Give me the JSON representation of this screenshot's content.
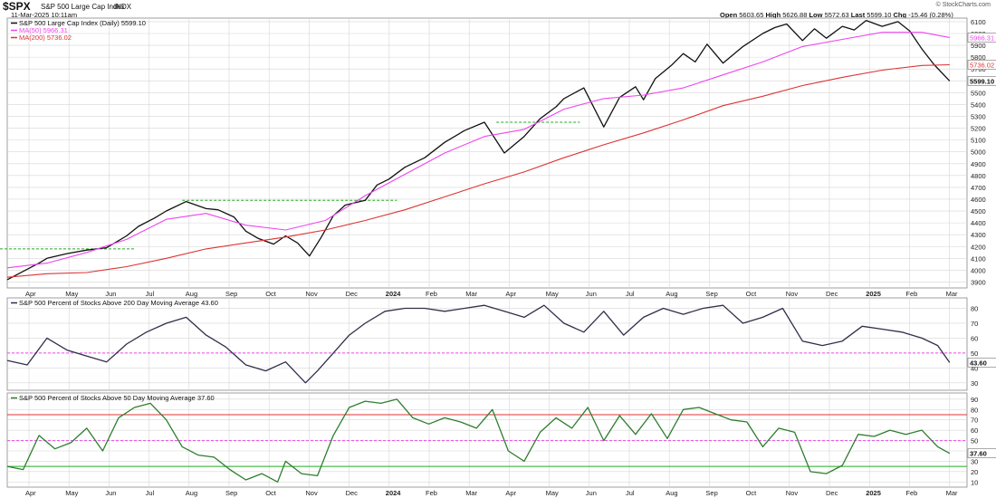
{
  "header": {
    "symbol": "$SPX",
    "name": "S&P 500 Large Cap Index",
    "exchange": "INDX",
    "timestamp": "11-Mar-2025 10:11am",
    "open_label": "Open",
    "open": "5603.65",
    "high_label": "High",
    "high": "5626.88",
    "low_label": "Low",
    "low": "5572.63",
    "last_label": "Last",
    "last": "5599.10",
    "chg_label": "Chg",
    "chg": "-15.46 (0.28%)",
    "watermark": "© StockCharts.com"
  },
  "colors": {
    "price": "#111111",
    "ma50": "#ee44ee",
    "ma200": "#dd3333",
    "breadth200": "#2f2f4a",
    "breadth50": "#2f7d2f",
    "grid": "#d6d6d6",
    "ref_green": "#22aa22",
    "ref_magenta": "#ee44ee",
    "ref_red": "#dd3333"
  },
  "chart_data": [
    {
      "type": "line",
      "legend": [
        "S&P 500 Large Cap Index (Daily) 5599.10",
        "MA(50) 5966.31",
        "MA(200) 5736.02"
      ],
      "x_axis_labels": [
        "Apr",
        "May",
        "Jun",
        "Jul",
        "Aug",
        "Sep",
        "Oct",
        "Nov",
        "Dec",
        "2024",
        "Feb",
        "Mar",
        "Apr",
        "May",
        "Jun",
        "Jul",
        "Aug",
        "Sep",
        "Oct",
        "Nov",
        "Dec",
        "2025",
        "Feb",
        "Mar"
      ],
      "yticks": [
        3900,
        4000,
        4100,
        4200,
        4300,
        4400,
        4500,
        4600,
        4700,
        4800,
        4900,
        5000,
        5100,
        5200,
        5300,
        5400,
        5500,
        5600,
        5700,
        5800,
        5900,
        6000,
        6100
      ],
      "ylim": [
        3850,
        6130
      ],
      "last_price_label": "5599.10",
      "ma50_label": "5966.31",
      "ma200_label": "5736.02",
      "x_range": [
        0,
        24
      ],
      "series": [
        {
          "name": "S&P 500 Large Cap Index (Daily) 5599.10",
          "x": [
            0,
            0.4,
            0.8,
            1,
            1.5,
            2,
            2.5,
            3,
            3.3,
            3.7,
            4,
            4.5,
            5,
            5.3,
            5.7,
            6,
            6.3,
            6.7,
            7,
            7.3,
            7.6,
            7.9,
            8.2,
            8.5,
            9,
            9.3,
            9.6,
            10,
            10.5,
            11,
            11.5,
            12,
            12.5,
            13,
            13.4,
            13.8,
            14,
            14.5,
            15,
            15.4,
            15.8,
            16,
            16.3,
            16.7,
            17,
            17.3,
            17.6,
            18,
            18.5,
            19,
            19.3,
            19.6,
            20,
            20.3,
            20.6,
            21,
            21.3,
            21.6,
            22,
            22.4,
            22.7,
            23,
            23.3,
            23.7
          ],
          "y": [
            3920,
            3990,
            4060,
            4100,
            4140,
            4170,
            4190,
            4290,
            4370,
            4440,
            4500,
            4580,
            4520,
            4510,
            4450,
            4330,
            4270,
            4220,
            4290,
            4230,
            4120,
            4280,
            4460,
            4550,
            4590,
            4720,
            4770,
            4870,
            4950,
            5080,
            5180,
            5250,
            4990,
            5130,
            5280,
            5380,
            5450,
            5540,
            5210,
            5460,
            5550,
            5440,
            5620,
            5730,
            5830,
            5760,
            5910,
            5750,
            5890,
            6000,
            6050,
            6080,
            5940,
            6040,
            5960,
            6060,
            6030,
            6110,
            6060,
            6100,
            6020,
            5870,
            5740,
            5599
          ]
        },
        {
          "name": "MA(50) 5966.31",
          "x": [
            0,
            1,
            2,
            3,
            4,
            5,
            6,
            7,
            8,
            9,
            10,
            11,
            12,
            13,
            14,
            15,
            16,
            17,
            18,
            19,
            20,
            21,
            22,
            23,
            23.7
          ],
          "y": [
            4020,
            4060,
            4150,
            4260,
            4430,
            4480,
            4380,
            4340,
            4420,
            4630,
            4810,
            4990,
            5130,
            5190,
            5360,
            5450,
            5480,
            5540,
            5650,
            5760,
            5890,
            5950,
            6010,
            6010,
            5966
          ]
        },
        {
          "name": "MA(200) 5736.02",
          "x": [
            0,
            1,
            2,
            3,
            4,
            5,
            6,
            7,
            8,
            9,
            10,
            11,
            12,
            13,
            14,
            15,
            16,
            17,
            18,
            19,
            20,
            21,
            22,
            23,
            23.7
          ],
          "y": [
            3940,
            3970,
            3980,
            4030,
            4100,
            4180,
            4230,
            4280,
            4340,
            4420,
            4510,
            4620,
            4730,
            4830,
            4950,
            5060,
            5160,
            5270,
            5390,
            5470,
            5560,
            5630,
            5690,
            5730,
            5736
          ]
        }
      ],
      "reference_lines": [
        {
          "y": 4180,
          "x": [
            -0.5,
            3.2
          ],
          "color": "#22aa22"
        },
        {
          "y": 4590,
          "x": [
            4.4,
            9.8
          ],
          "color": "#22aa22"
        },
        {
          "y": 5250,
          "x": [
            12.3,
            14.4
          ],
          "color": "#22aa22"
        }
      ]
    },
    {
      "type": "line",
      "legend": [
        "S&P 500 Percent of Stocks Above 200 Day Moving Average 43.60"
      ],
      "yticks": [
        30,
        40,
        50,
        60,
        70,
        80
      ],
      "ylim": [
        25,
        87
      ],
      "last_value_label": "43.60",
      "x_range": [
        0,
        24
      ],
      "series": [
        {
          "name": "S&P 500 Percent of Stocks Above 200 Day Moving Average 43.60",
          "x": [
            0,
            0.5,
            1,
            1.5,
            2,
            2.5,
            3,
            3.5,
            4,
            4.5,
            5,
            5.5,
            6,
            6.5,
            7,
            7.5,
            7.8,
            8.2,
            8.6,
            9,
            9.5,
            10,
            10.5,
            11,
            11.5,
            12,
            12.5,
            13,
            13.5,
            14,
            14.5,
            15,
            15.5,
            16,
            16.5,
            17,
            17.5,
            18,
            18.5,
            19,
            19.5,
            20,
            20.5,
            21,
            21.5,
            22,
            22.5,
            23,
            23.4,
            23.7
          ],
          "y": [
            45,
            42,
            60,
            52,
            48,
            44,
            56,
            64,
            70,
            74,
            62,
            54,
            42,
            38,
            44,
            30,
            38,
            50,
            62,
            70,
            78,
            80,
            80,
            78,
            80,
            82,
            78,
            74,
            82,
            70,
            64,
            78,
            62,
            74,
            80,
            76,
            80,
            82,
            70,
            74,
            80,
            58,
            55,
            58,
            68,
            66,
            64,
            60,
            55,
            43.6
          ]
        }
      ],
      "reference_lines": [
        {
          "y": 50,
          "color": "#ee44ee",
          "dashed": true
        }
      ]
    },
    {
      "type": "line",
      "legend": [
        "S&P 500 Percent of Stocks Above 50 Day Moving Average 37.60"
      ],
      "yticks": [
        10,
        20,
        30,
        40,
        50,
        60,
        70,
        80,
        90
      ],
      "ylim": [
        5,
        96
      ],
      "last_value_label": "37.60",
      "x_range": [
        0,
        24
      ],
      "series": [
        {
          "name": "S&P 500 Percent of Stocks Above 50 Day Moving Average 37.60",
          "x": [
            0,
            0.4,
            0.8,
            1.2,
            1.6,
            2,
            2.4,
            2.8,
            3.2,
            3.6,
            4,
            4.4,
            4.8,
            5.2,
            5.6,
            6,
            6.4,
            6.8,
            7,
            7.4,
            7.8,
            8.2,
            8.6,
            9,
            9.4,
            9.8,
            10.2,
            10.6,
            11,
            11.4,
            11.8,
            12.2,
            12.6,
            13,
            13.4,
            13.8,
            14.2,
            14.6,
            15,
            15.4,
            15.8,
            16.2,
            16.6,
            17,
            17.4,
            17.8,
            18.2,
            18.6,
            19,
            19.4,
            19.8,
            20.2,
            20.6,
            21,
            21.4,
            21.8,
            22.2,
            22.6,
            23,
            23.4,
            23.7
          ],
          "y": [
            25,
            22,
            55,
            42,
            48,
            62,
            40,
            72,
            82,
            86,
            70,
            44,
            36,
            34,
            22,
            12,
            18,
            10,
            30,
            18,
            16,
            55,
            82,
            88,
            86,
            90,
            72,
            66,
            72,
            68,
            62,
            80,
            40,
            30,
            58,
            72,
            62,
            82,
            50,
            74,
            56,
            76,
            52,
            80,
            82,
            76,
            70,
            68,
            44,
            62,
            58,
            20,
            18,
            26,
            56,
            54,
            60,
            56,
            60,
            44,
            37.6
          ]
        }
      ],
      "reference_lines": [
        {
          "y": 75,
          "color": "#dd3333"
        },
        {
          "y": 50,
          "color": "#ee44ee",
          "dashed": true
        },
        {
          "y": 25,
          "color": "#22aa22"
        }
      ]
    }
  ]
}
